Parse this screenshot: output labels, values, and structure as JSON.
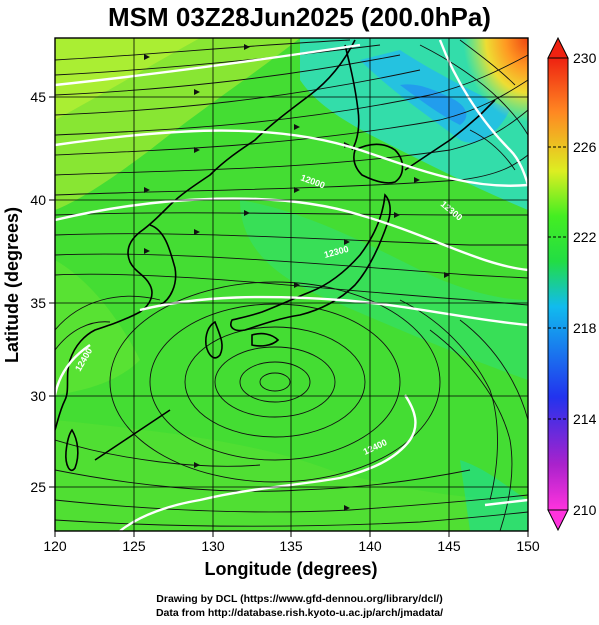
{
  "title": "MSM 03Z28Jun2025 (200.0hPa)",
  "credits": {
    "line1": "Drawing by DCL (https://www.gfd-dennou.org/library/dcl/)",
    "line2": "Data from http://database.rish.kyoto-u.ac.jp/arch/jmadata/"
  },
  "map": {
    "xlabel": "Longitude (degrees)",
    "ylabel": "Latitude  (degrees)",
    "lon_range": [
      120,
      150
    ],
    "lat_range": [
      22.4,
      47.6
    ],
    "lon_ticks": [
      "120",
      "125",
      "130",
      "135",
      "140",
      "145",
      "150"
    ],
    "lat_ticks": [
      "25",
      "30",
      "35",
      "40",
      "45"
    ],
    "gridlines": true,
    "field": "temperature (K), shaded",
    "vectors": "wind streamlines",
    "contour_labels": [
      "12000",
      "12000",
      "12300",
      "12300",
      "12400",
      "12400"
    ]
  },
  "colorbar": {
    "ticks": [
      "230",
      "226",
      "222",
      "218",
      "214",
      "210"
    ],
    "range": [
      210,
      230
    ],
    "colors": {
      "bottom": "#ff44cc",
      "low": "#3344dd",
      "mid_low": "#11bbee",
      "mid": "#22dd22",
      "mid_high": "#99ee22",
      "high": "#eedd22",
      "top": "#ee3311"
    }
  }
}
